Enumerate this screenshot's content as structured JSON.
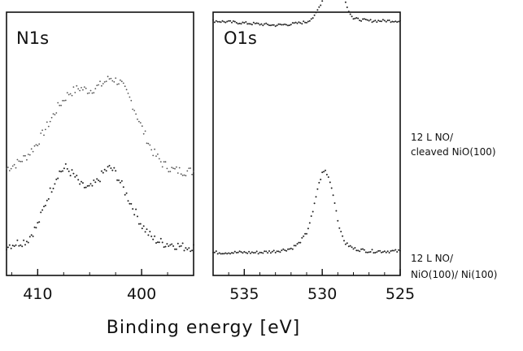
{
  "chart_data": [
    {
      "type": "scatter",
      "title": "N1s",
      "xlabel": "Binding energy [eV]",
      "xlim": [
        413,
        395
      ],
      "xticks": [
        "410",
        "400"
      ],
      "series": [
        {
          "name": "12 L NO/ cleaved NiO(100)",
          "x": [
            413,
            412,
            411,
            410,
            409,
            408,
            407,
            406,
            405,
            404,
            403,
            402,
            401,
            400,
            399,
            398,
            397,
            396,
            395
          ],
          "y": [
            0.14,
            0.18,
            0.24,
            0.34,
            0.48,
            0.62,
            0.72,
            0.76,
            0.74,
            0.78,
            0.84,
            0.8,
            0.66,
            0.46,
            0.28,
            0.18,
            0.13,
            0.12,
            0.12
          ]
        },
        {
          "name": "12 L NO/ NiO(100)/ Ni(100)",
          "x": [
            413,
            412,
            411,
            410,
            409,
            408,
            407.3,
            406.5,
            405.8,
            405,
            404.3,
            403.5,
            403,
            402.5,
            402,
            401,
            400,
            399,
            398,
            397,
            396,
            395
          ],
          "y": [
            0.06,
            0.08,
            0.1,
            0.22,
            0.44,
            0.62,
            0.66,
            0.6,
            0.52,
            0.5,
            0.55,
            0.64,
            0.66,
            0.62,
            0.54,
            0.38,
            0.22,
            0.12,
            0.08,
            0.07,
            0.05,
            0.05
          ]
        }
      ]
    },
    {
      "type": "scatter",
      "title": "O1s",
      "xlabel": "Binding energy [eV]",
      "xlim": [
        537,
        525
      ],
      "xticks": [
        "535",
        "530",
        "525"
      ],
      "series": [
        {
          "name": "12 L NO/ cleaved NiO(100)",
          "x": [
            537,
            536,
            535,
            534,
            533,
            532,
            531,
            530.5,
            530,
            529.7,
            529.4,
            529.2,
            529,
            528.7,
            528.4,
            528,
            527,
            526,
            525
          ],
          "y": [
            0.62,
            0.61,
            0.6,
            0.59,
            0.58,
            0.59,
            0.61,
            0.66,
            0.8,
            0.98,
            1.16,
            1.2,
            1.12,
            0.92,
            0.74,
            0.64,
            0.62,
            0.62,
            0.62
          ]
        },
        {
          "name": "12 L NO/ NiO(100)/ Ni(100)",
          "x": [
            537,
            536,
            535,
            534,
            533,
            532,
            531.5,
            531,
            530.6,
            530.3,
            530,
            529.8,
            529.5,
            529.2,
            529,
            528.8,
            528.5,
            528,
            527,
            526,
            525
          ],
          "y": [
            0.07,
            0.07,
            0.07,
            0.07,
            0.08,
            0.1,
            0.14,
            0.22,
            0.38,
            0.56,
            0.68,
            0.7,
            0.62,
            0.46,
            0.32,
            0.22,
            0.14,
            0.1,
            0.08,
            0.08,
            0.08
          ]
        }
      ]
    }
  ],
  "xaxis_label": "Binding energy [eV]",
  "legend": {
    "top_line1": "12 L NO/",
    "top_line2": "cleaved NiO(100)",
    "bottom_line1": "12 L NO/",
    "bottom_line2": "NiO(100)/ Ni(100)"
  }
}
